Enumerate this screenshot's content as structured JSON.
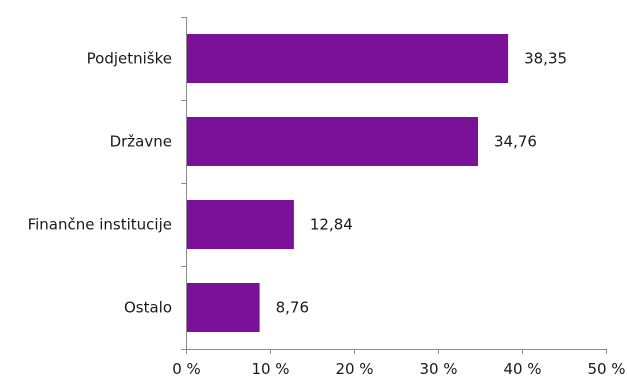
{
  "chart_data": {
    "type": "bar",
    "orientation": "horizontal",
    "categories": [
      "Podjetniške",
      "Državne",
      "Finančne institucije",
      "Ostalo"
    ],
    "values": [
      38.35,
      34.76,
      12.84,
      8.76
    ],
    "value_labels": [
      "38,35",
      "34,76",
      "12,84",
      "8,76"
    ],
    "xlim": [
      0,
      50
    ],
    "x_ticks": [
      0,
      10,
      20,
      30,
      40,
      50
    ],
    "x_tick_labels": [
      "0 %",
      "10 %",
      "20 %",
      "30 %",
      "40 %",
      "50 %"
    ],
    "bar_color": "#7b1199",
    "grid": false,
    "legend": false
  }
}
